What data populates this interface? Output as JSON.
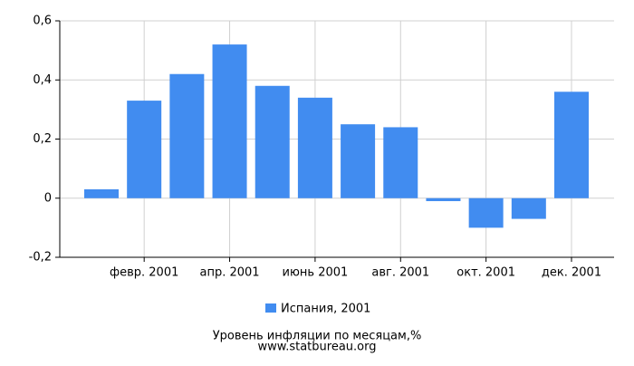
{
  "chart_data": {
    "type": "bar",
    "categories": [
      null,
      "февр. 2001",
      null,
      "апр. 2001",
      null,
      "июнь 2001",
      null,
      "авг. 2001",
      null,
      "окт. 2001",
      null,
      "дек. 2001"
    ],
    "series": [
      {
        "name": "Испания, 2001",
        "color": "#418cf0",
        "values": [
          0.03,
          0.33,
          0.42,
          0.52,
          0.38,
          0.34,
          0.25,
          0.24,
          -0.01,
          -0.1,
          -0.07,
          0.36
        ]
      }
    ],
    "ylim": [
      -0.2,
      0.6
    ],
    "yticks": [
      {
        "value": -0.2,
        "label": "-0,2"
      },
      0,
      {
        "value": 0.2,
        "label": "0,2"
      },
      {
        "value": 0.4,
        "label": "0,4"
      },
      {
        "value": 0.6,
        "label": "0,6"
      }
    ],
    "grid": true,
    "title": "Уровень инфляции по месяцам,%",
    "subtitle": "www.statbureau.org"
  }
}
